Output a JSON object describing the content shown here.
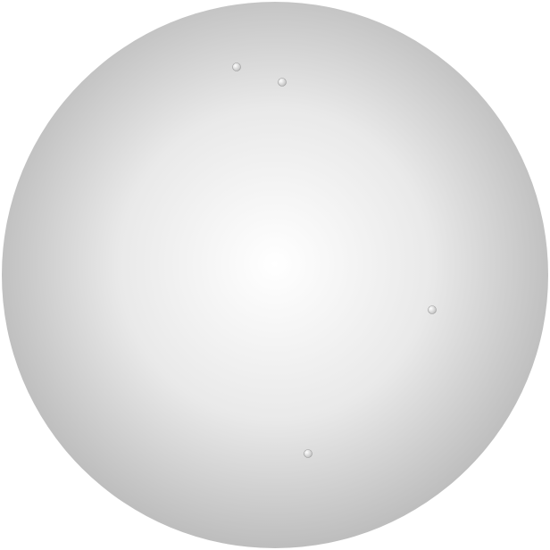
{
  "scene": {
    "subject": "protein-backbone-tube-render",
    "colors": {
      "background": "#ffffff",
      "sphere_highlight": "#ffffff",
      "sphere_mid": "#e9e9e9",
      "sphere_edge": "#bdbdbd",
      "chain_dark": "#8c1a4a",
      "chain_mid": "#a8244f",
      "chain_light": "#cf4a4e",
      "terminus_marker": "#f4f4f4"
    }
  }
}
